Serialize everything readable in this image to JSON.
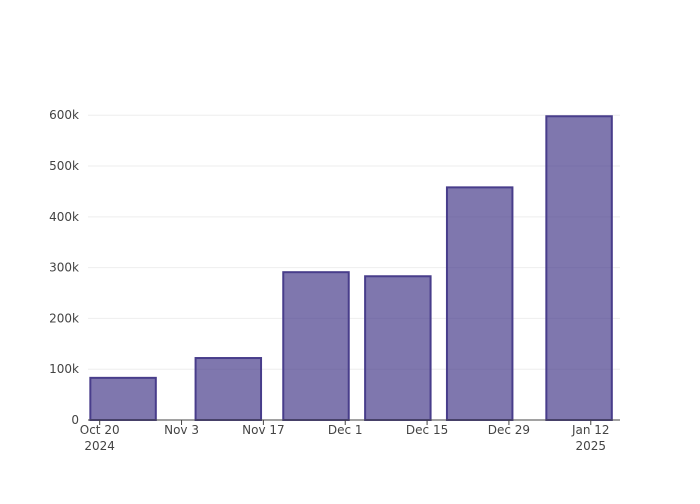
{
  "chart_data": {
    "type": "bar",
    "x": [
      "2024-10-24",
      "2024-11-11",
      "2024-11-26",
      "2024-12-10",
      "2024-12-24",
      "2025-01-10"
    ],
    "values": [
      83000,
      122000,
      291000,
      283000,
      458000,
      598000
    ],
    "color": "#483d8b",
    "xlim": [
      "2024-10-18",
      "2025-01-17"
    ],
    "xticks": [
      {
        "value": "2024-10-20",
        "label": [
          "Oct 20",
          "2024"
        ]
      },
      {
        "value": "2024-11-03",
        "label": [
          "Nov 3"
        ]
      },
      {
        "value": "2024-11-17",
        "label": [
          "Nov 17"
        ]
      },
      {
        "value": "2024-12-01",
        "label": [
          "Dec 1"
        ]
      },
      {
        "value": "2024-12-15",
        "label": [
          "Dec 15"
        ]
      },
      {
        "value": "2024-12-29",
        "label": [
          "Dec 29"
        ]
      },
      {
        "value": "2025-01-12",
        "label": [
          "Jan 12",
          "2025"
        ]
      }
    ],
    "ylim": [
      0,
      630000
    ],
    "yticks": [
      0,
      {
        "value": 100000,
        "label": "100k"
      },
      {
        "value": 200000,
        "label": "200k"
      },
      {
        "value": 300000,
        "label": "300k"
      },
      {
        "value": 400000,
        "label": "400k"
      },
      {
        "value": 500000,
        "label": "500k"
      },
      {
        "value": 600000,
        "label": "600k"
      }
    ],
    "grid": true
  }
}
